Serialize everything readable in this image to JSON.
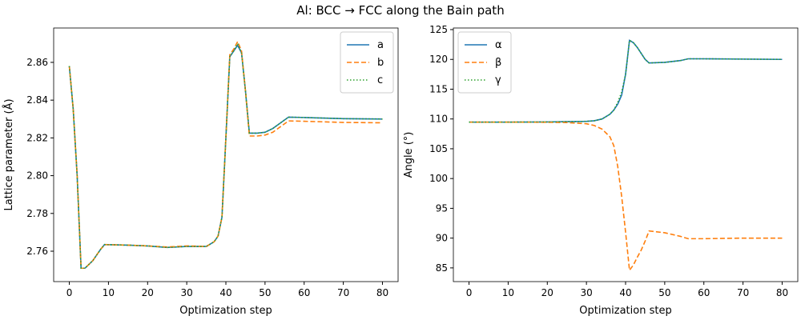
{
  "title": "Al: BCC → FCC along the Bain path",
  "chart_data": [
    {
      "type": "line",
      "xlabel": "Optimization step",
      "ylabel": "Lattice parameter (Å)",
      "x": [
        0,
        1,
        2,
        3,
        4,
        5,
        6,
        7,
        8,
        9,
        15,
        20,
        25,
        30,
        35,
        37,
        38,
        39,
        40,
        41,
        42,
        43,
        44,
        45,
        46,
        48,
        50,
        52,
        54,
        56,
        60,
        70,
        80
      ],
      "series": [
        {
          "name": "a",
          "color": "#1f77b4",
          "linestyle": "solid",
          "values": [
            2.858,
            2.835,
            2.8,
            2.751,
            2.751,
            2.753,
            2.755,
            2.758,
            2.761,
            2.7635,
            2.7632,
            2.7628,
            2.762,
            2.7625,
            2.7625,
            2.765,
            2.768,
            2.778,
            2.82,
            2.863,
            2.866,
            2.869,
            2.865,
            2.845,
            2.8225,
            2.8225,
            2.823,
            2.825,
            2.828,
            2.831,
            2.8308,
            2.8302,
            2.83
          ]
        },
        {
          "name": "b",
          "color": "#ff7f0e",
          "linestyle": "dashed",
          "values": [
            2.858,
            2.835,
            2.8,
            2.751,
            2.751,
            2.753,
            2.755,
            2.758,
            2.761,
            2.7635,
            2.7632,
            2.7628,
            2.7622,
            2.7628,
            2.7625,
            2.765,
            2.768,
            2.778,
            2.82,
            2.864,
            2.867,
            2.871,
            2.866,
            2.845,
            2.821,
            2.821,
            2.8215,
            2.823,
            2.826,
            2.829,
            2.8288,
            2.8282,
            2.828
          ]
        },
        {
          "name": "c",
          "color": "#2ca02c",
          "linestyle": "dotted",
          "values": [
            2.858,
            2.835,
            2.8,
            2.751,
            2.751,
            2.753,
            2.755,
            2.758,
            2.761,
            2.7635,
            2.7632,
            2.7628,
            2.762,
            2.7625,
            2.7625,
            2.765,
            2.768,
            2.778,
            2.82,
            2.863,
            2.866,
            2.87,
            2.865,
            2.845,
            2.8225,
            2.8225,
            2.823,
            2.825,
            2.828,
            2.831,
            2.8308,
            2.8302,
            2.83
          ]
        }
      ],
      "xlim": [
        -4,
        84
      ],
      "xticks": [
        0,
        10,
        20,
        30,
        40,
        50,
        60,
        70,
        80
      ],
      "ylim": [
        2.7439,
        2.8782
      ],
      "yticks": [
        2.76,
        2.78,
        {
          "value": 2.8,
          "label": "2.80"
        },
        2.82,
        2.84,
        2.86
      ],
      "legend": "upper right"
    },
    {
      "type": "line",
      "xlabel": "Optimization step",
      "ylabel": "Angle (°)",
      "x": [
        0,
        10,
        20,
        25,
        30,
        32,
        34,
        36,
        37,
        38,
        39,
        40,
        41,
        42,
        43,
        44,
        45,
        46,
        50,
        54,
        56,
        60,
        70,
        80
      ],
      "series": [
        {
          "name": "α",
          "color": "#1f77b4",
          "linestyle": "solid",
          "values": [
            109.47,
            109.47,
            109.5,
            109.55,
            109.6,
            109.7,
            110,
            110.8,
            111.5,
            112.5,
            114,
            117.5,
            123.2,
            122.8,
            122,
            121,
            120,
            119.4,
            119.5,
            119.8,
            120.1,
            120.1,
            120.05,
            120
          ]
        },
        {
          "name": "β",
          "color": "#ff7f0e",
          "linestyle": "dashed",
          "values": [
            109.47,
            109.47,
            109.45,
            109.4,
            109.2,
            108.9,
            108.3,
            107,
            105.5,
            102,
            97,
            91,
            84.6,
            85.5,
            86.8,
            88,
            89.5,
            91.2,
            90.9,
            90.3,
            89.9,
            89.9,
            90,
            90
          ]
        },
        {
          "name": "γ",
          "color": "#2ca02c",
          "linestyle": "dotted",
          "values": [
            109.47,
            109.47,
            109.5,
            109.55,
            109.6,
            109.7,
            110,
            110.8,
            111.5,
            112.8,
            114.5,
            117.5,
            123.2,
            122.8,
            122,
            121,
            120,
            119.4,
            119.5,
            119.8,
            120.1,
            120.1,
            120.05,
            120
          ]
        }
      ],
      "xlim": [
        -4,
        84
      ],
      "xticks": [
        0,
        10,
        20,
        30,
        40,
        50,
        60,
        70,
        80
      ],
      "ylim": [
        82.7,
        125.27
      ],
      "yticks": [
        85,
        90,
        95,
        100,
        105,
        110,
        115,
        120,
        125
      ],
      "legend": "upper left"
    }
  ]
}
